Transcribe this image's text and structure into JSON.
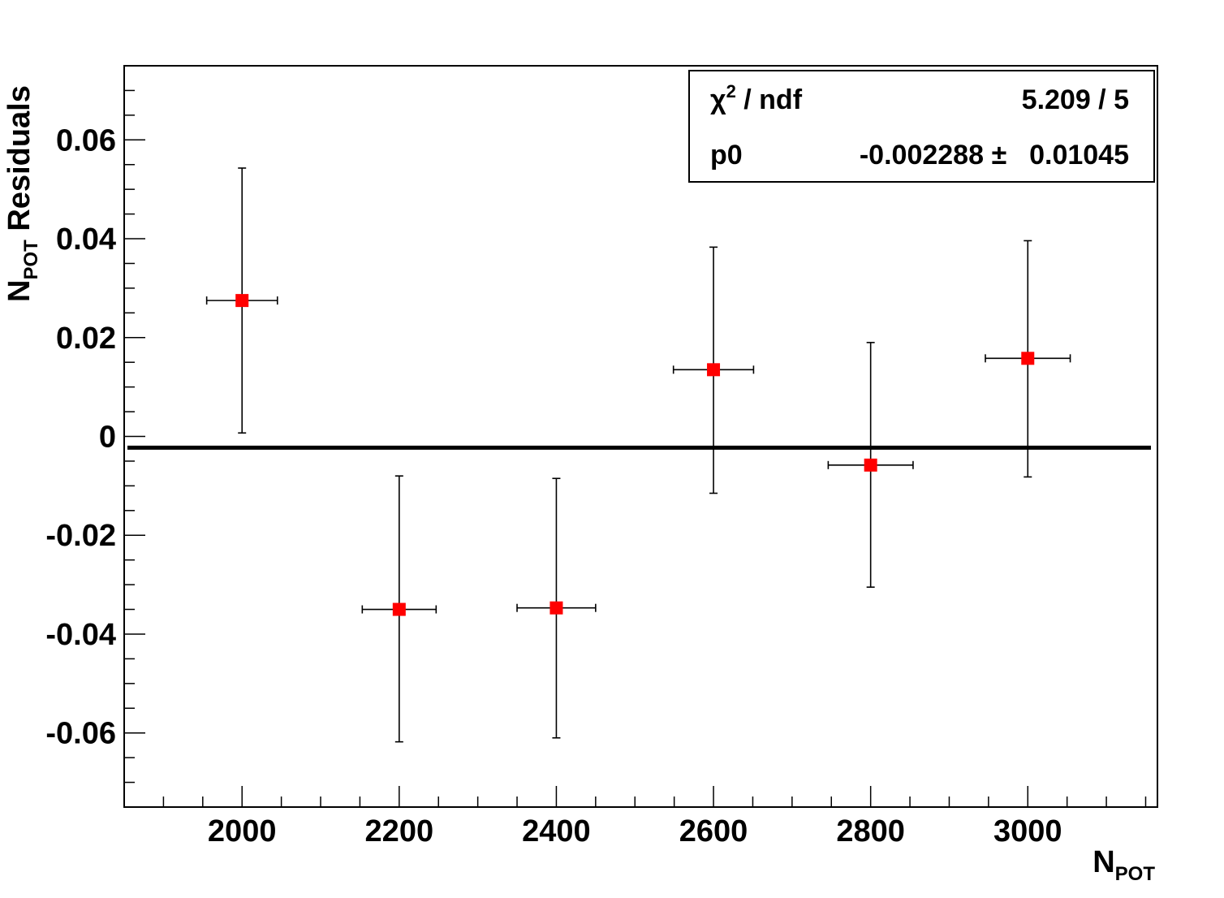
{
  "chart_data": {
    "type": "scatter",
    "title": "",
    "xlabel": {
      "main": "N",
      "sub": "POT"
    },
    "ylabel": {
      "main": "N",
      "sub": "POT",
      "rest": " Residuals"
    },
    "xlim": [
      1850,
      3165
    ],
    "ylim": [
      -0.075,
      0.075
    ],
    "xticks": [
      2000,
      2200,
      2400,
      2600,
      2800,
      3000
    ],
    "xtick_labels": [
      "2000",
      "2200",
      "2400",
      "2600",
      "2800",
      "3000"
    ],
    "yticks": [
      -0.06,
      -0.04,
      -0.02,
      0,
      0.02,
      0.04,
      0.06
    ],
    "ytick_labels": [
      "-0.06",
      "-0.04",
      "-0.02",
      "0",
      "0.02",
      "0.04",
      "0.06"
    ],
    "series": [
      {
        "marker_color": "#ff0000",
        "points": [
          {
            "x": 2000,
            "y": 0.0275,
            "xerr": 45,
            "yerr_low": 0.0268,
            "yerr_high": 0.0268
          },
          {
            "x": 2200,
            "y": -0.035,
            "xerr": 47,
            "yerr_low": 0.0268,
            "yerr_high": 0.027
          },
          {
            "x": 2400,
            "y": -0.0347,
            "xerr": 50,
            "yerr_low": 0.0263,
            "yerr_high": 0.0262
          },
          {
            "x": 2600,
            "y": 0.0135,
            "xerr": 51,
            "yerr_low": 0.025,
            "yerr_high": 0.0248
          },
          {
            "x": 2800,
            "y": -0.0058,
            "xerr": 54,
            "yerr_low": 0.0247,
            "yerr_high": 0.0248
          },
          {
            "x": 3000,
            "y": 0.0158,
            "xerr": 54,
            "yerr_low": 0.024,
            "yerr_high": 0.0238
          }
        ]
      }
    ],
    "fit": {
      "function": "constant",
      "value": -0.002288
    },
    "stats_box": {
      "row1_label": "χ",
      "row1_label_sup": "2",
      "row1_label_rest": " / ndf",
      "row1_value": "5.209 / 5",
      "row2_label": "p0",
      "row2_value": "-0.002288",
      "row2_pm": "±",
      "row2_error": "0.01045"
    },
    "grid": false,
    "colors": {
      "marker": "#ff0000",
      "line": "#000000"
    }
  }
}
